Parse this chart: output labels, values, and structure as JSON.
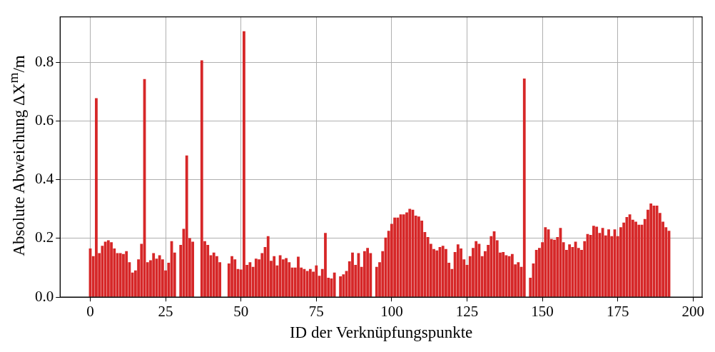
{
  "chart_data": {
    "type": "bar",
    "xlabel": "ID der Verknüpfungspunkte",
    "ylabel": "Absolute Abweichung ΔX$^{m}$/m",
    "color": "#d62728",
    "grid": true,
    "xlim": [
      -10,
      203
    ],
    "xticks": [
      0,
      25,
      50,
      75,
      100,
      125,
      150,
      175,
      200
    ],
    "ylim": [
      0,
      0.955
    ],
    "yticks": [
      {
        "value": 0,
        "label": "0.0"
      },
      0.2,
      0.4,
      0.6,
      0.8
    ],
    "x": [
      0,
      1,
      2,
      3,
      4,
      5,
      6,
      7,
      8,
      9,
      10,
      11,
      12,
      13,
      14,
      15,
      16,
      17,
      18,
      19,
      20,
      21,
      22,
      23,
      24,
      25,
      26,
      27,
      28,
      29,
      30,
      31,
      32,
      33,
      34,
      35,
      36,
      37,
      38,
      39,
      40,
      41,
      42,
      43,
      44,
      45,
      46,
      47,
      48,
      49,
      50,
      51,
      52,
      53,
      54,
      55,
      56,
      57,
      58,
      59,
      60,
      61,
      62,
      63,
      64,
      65,
      66,
      67,
      68,
      69,
      70,
      71,
      72,
      73,
      74,
      75,
      76,
      77,
      78,
      79,
      80,
      81,
      82,
      83,
      84,
      85,
      86,
      87,
      88,
      89,
      90,
      91,
      92,
      93,
      94,
      95,
      96,
      97,
      98,
      99,
      100,
      101,
      102,
      103,
      104,
      105,
      106,
      107,
      108,
      109,
      110,
      111,
      112,
      113,
      114,
      115,
      116,
      117,
      118,
      119,
      120,
      121,
      122,
      123,
      124,
      125,
      126,
      127,
      128,
      129,
      130,
      131,
      132,
      133,
      134,
      135,
      136,
      137,
      138,
      139,
      140,
      141,
      142,
      143,
      144,
      145,
      146,
      147,
      148,
      149,
      150,
      151,
      152,
      153,
      154,
      155,
      156,
      157,
      158,
      159,
      160,
      161,
      162,
      163,
      164,
      165,
      166,
      167,
      168,
      169,
      170,
      171,
      172,
      173,
      174,
      175,
      176,
      177,
      178,
      179,
      180,
      181,
      182,
      183,
      184,
      185,
      186,
      187,
      188,
      189,
      190,
      191,
      192
    ],
    "values": [
      0.166,
      0.14,
      0.678,
      0.15,
      0.175,
      0.189,
      0.194,
      0.187,
      0.166,
      0.15,
      0.15,
      0.147,
      0.157,
      0.119,
      0.084,
      0.091,
      0.129,
      0.182,
      0.743,
      0.119,
      0.126,
      0.15,
      0.131,
      0.143,
      0.129,
      0.091,
      0.117,
      0.191,
      0.152,
      null,
      0.178,
      0.233,
      0.483,
      0.201,
      0.189,
      null,
      null,
      0.807,
      0.191,
      0.178,
      0.143,
      0.152,
      0.14,
      0.119,
      null,
      null,
      0.115,
      0.14,
      0.129,
      0.096,
      0.094,
      0.906,
      0.11,
      0.119,
      0.103,
      0.131,
      0.129,
      0.15,
      0.171,
      0.208,
      0.124,
      0.14,
      0.108,
      0.143,
      0.129,
      0.133,
      0.119,
      0.101,
      0.101,
      0.138,
      0.101,
      0.096,
      0.089,
      0.096,
      0.087,
      0.108,
      0.073,
      0.096,
      0.219,
      0.066,
      0.064,
      0.084,
      null,
      0.071,
      0.078,
      0.089,
      0.122,
      0.152,
      0.11,
      0.15,
      0.103,
      0.157,
      0.168,
      0.15,
      null,
      0.103,
      0.119,
      0.157,
      0.203,
      0.226,
      0.25,
      0.271,
      0.271,
      0.282,
      0.282,
      0.289,
      0.301,
      0.298,
      0.278,
      0.275,
      0.261,
      0.222,
      0.205,
      0.182,
      0.164,
      0.159,
      0.171,
      0.175,
      0.164,
      0.117,
      0.096,
      0.154,
      0.18,
      0.166,
      0.129,
      0.11,
      0.14,
      0.168,
      0.191,
      0.182,
      0.14,
      0.157,
      0.178,
      0.208,
      0.224,
      0.194,
      0.152,
      0.154,
      0.143,
      0.14,
      0.147,
      0.112,
      0.119,
      0.103,
      0.745,
      null,
      0.066,
      0.115,
      0.161,
      0.168,
      0.187,
      0.238,
      0.231,
      0.198,
      0.196,
      0.205,
      0.236,
      0.187,
      0.161,
      0.18,
      0.171,
      0.189,
      0.168,
      0.161,
      0.191,
      0.215,
      0.212,
      0.243,
      0.24,
      0.219,
      0.236,
      0.21,
      0.231,
      0.208,
      0.231,
      0.208,
      0.238,
      0.254,
      0.273,
      0.282,
      0.264,
      0.257,
      0.247,
      0.247,
      0.266,
      0.298,
      0.319,
      0.312,
      0.312,
      0.287,
      0.257,
      0.238,
      0.226
    ]
  }
}
